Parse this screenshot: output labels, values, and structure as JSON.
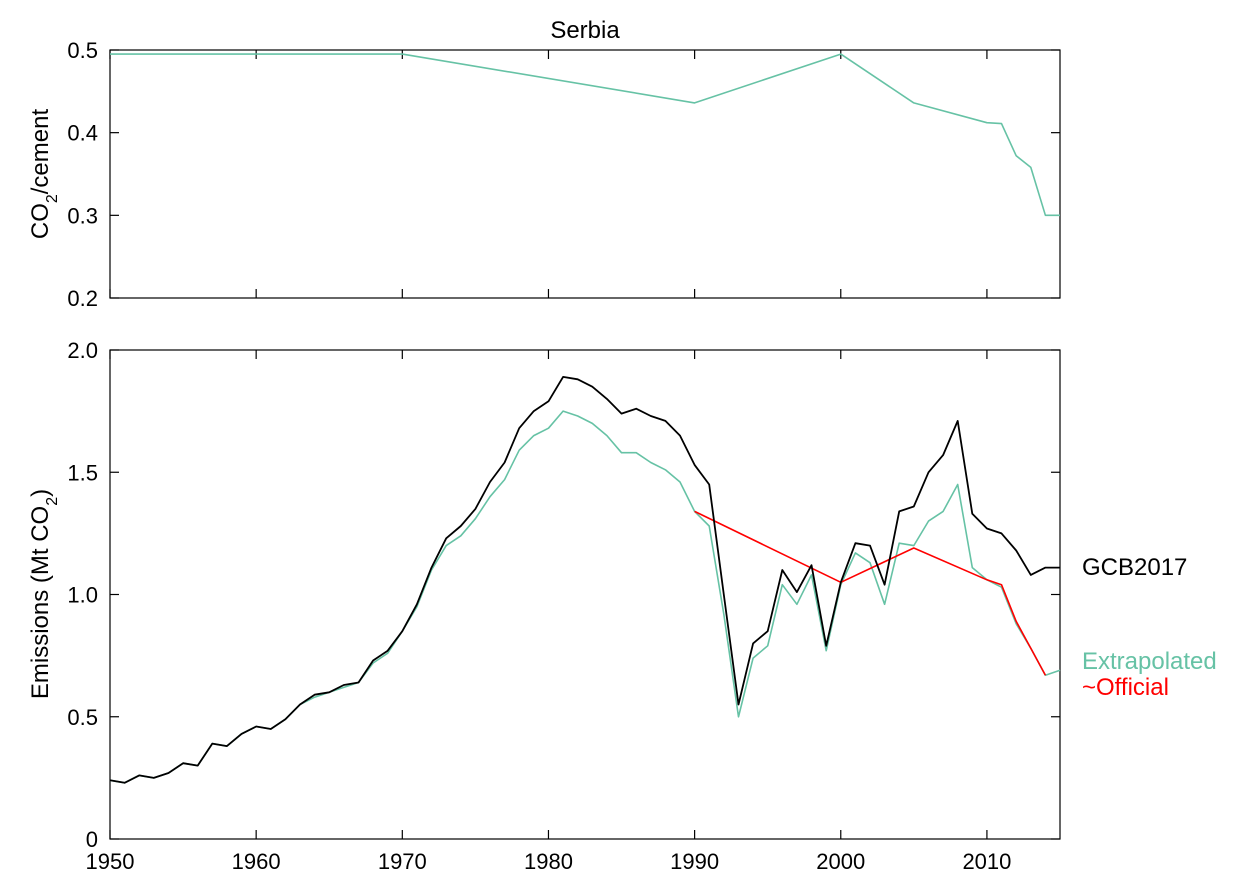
{
  "colors": {
    "gcb": "#000000",
    "extrapolated": "#66c2a5",
    "official": "#ff0000",
    "axis": "#000000"
  },
  "chart_data": [
    {
      "type": "line",
      "title": "Serbia",
      "ylabel": {
        "main": "CO",
        "sub": "2",
        "rest": "/cement"
      },
      "xlabel": "",
      "xlim": [
        1950,
        2015
      ],
      "ylim": [
        0.2,
        0.5
      ],
      "xticks": [
        1950,
        1960,
        1970,
        1980,
        1990,
        2000,
        2010
      ],
      "yticks": [
        0.2,
        0.3,
        0.4,
        0.5
      ],
      "ytick_labels": [
        "0.2",
        "0.3",
        "0.4",
        "0.5"
      ],
      "grid": false,
      "series": [
        {
          "key": "extrapolated",
          "x": [
            1950,
            1970,
            1990,
            2000,
            2005,
            2010,
            2011,
            2012,
            2013,
            2014,
            2015
          ],
          "y": [
            0.495,
            0.495,
            0.436,
            0.495,
            0.436,
            0.412,
            0.411,
            0.372,
            0.358,
            0.3,
            0.3
          ]
        }
      ]
    },
    {
      "type": "line",
      "title": "",
      "ylabel": {
        "main": "Emissions (Mt CO",
        "sub": "2",
        "rest": ")"
      },
      "xlabel": "",
      "xlim": [
        1950,
        2015
      ],
      "ylim": [
        0,
        2.0
      ],
      "xticks": [
        1950,
        1960,
        1970,
        1980,
        1990,
        2000,
        2010
      ],
      "xtick_labels": [
        "1950",
        "1960",
        "1970",
        "1980",
        "1990",
        "2000",
        "2010"
      ],
      "yticks": [
        0,
        0.5,
        1.0,
        1.5,
        2.0
      ],
      "ytick_labels": [
        "0",
        "0.5",
        "1.0",
        "1.5",
        "2.0"
      ],
      "grid": false,
      "legend_position": "right",
      "series": [
        {
          "key": "gcb",
          "name": "GCB2017",
          "x": [
            1950,
            1951,
            1952,
            1953,
            1954,
            1955,
            1956,
            1957,
            1958,
            1959,
            1960,
            1961,
            1962,
            1963,
            1964,
            1965,
            1966,
            1967,
            1968,
            1969,
            1970,
            1971,
            1972,
            1973,
            1974,
            1975,
            1976,
            1977,
            1978,
            1979,
            1980,
            1981,
            1982,
            1983,
            1984,
            1985,
            1986,
            1987,
            1988,
            1989,
            1990,
            1991,
            1992,
            1993,
            1994,
            1995,
            1996,
            1997,
            1998,
            1999,
            2000,
            2001,
            2002,
            2003,
            2004,
            2005,
            2006,
            2007,
            2008,
            2009,
            2010,
            2011,
            2012,
            2013,
            2014,
            2015
          ],
          "y": [
            0.24,
            0.23,
            0.26,
            0.25,
            0.27,
            0.31,
            0.3,
            0.39,
            0.38,
            0.43,
            0.46,
            0.45,
            0.49,
            0.55,
            0.59,
            0.6,
            0.63,
            0.64,
            0.73,
            0.77,
            0.85,
            0.96,
            1.11,
            1.23,
            1.28,
            1.35,
            1.46,
            1.54,
            1.68,
            1.75,
            1.79,
            1.89,
            1.88,
            1.85,
            1.8,
            1.74,
            1.76,
            1.73,
            1.71,
            1.65,
            1.53,
            1.45,
            1.0,
            0.55,
            0.8,
            0.85,
            1.1,
            1.01,
            1.12,
            0.79,
            1.05,
            1.21,
            1.2,
            1.04,
            1.34,
            1.36,
            1.5,
            1.57,
            1.71,
            1.33,
            1.27,
            1.25,
            1.18,
            1.08,
            1.11,
            1.11
          ]
        },
        {
          "key": "extrapolated",
          "name": "Extrapolated",
          "x": [
            1950,
            1951,
            1952,
            1953,
            1954,
            1955,
            1956,
            1957,
            1958,
            1959,
            1960,
            1961,
            1962,
            1963,
            1964,
            1965,
            1966,
            1967,
            1968,
            1969,
            1970,
            1971,
            1972,
            1973,
            1974,
            1975,
            1976,
            1977,
            1978,
            1979,
            1980,
            1981,
            1982,
            1983,
            1984,
            1985,
            1986,
            1987,
            1988,
            1989,
            1990,
            1991,
            1992,
            1993,
            1994,
            1995,
            1996,
            1997,
            1998,
            1999,
            2000,
            2001,
            2002,
            2003,
            2004,
            2005,
            2006,
            2007,
            2008,
            2009,
            2010,
            2011,
            2012,
            2013,
            2014,
            2015
          ],
          "y": [
            0.24,
            0.23,
            0.26,
            0.25,
            0.27,
            0.31,
            0.3,
            0.39,
            0.38,
            0.43,
            0.46,
            0.45,
            0.49,
            0.55,
            0.58,
            0.6,
            0.62,
            0.64,
            0.72,
            0.76,
            0.85,
            0.95,
            1.1,
            1.2,
            1.24,
            1.31,
            1.4,
            1.47,
            1.59,
            1.65,
            1.68,
            1.75,
            1.73,
            1.7,
            1.65,
            1.58,
            1.58,
            1.54,
            1.51,
            1.46,
            1.34,
            1.28,
            0.92,
            0.5,
            0.74,
            0.79,
            1.04,
            0.96,
            1.08,
            0.77,
            1.04,
            1.17,
            1.13,
            0.96,
            1.21,
            1.2,
            1.3,
            1.34,
            1.45,
            1.11,
            1.06,
            1.03,
            0.88,
            0.78,
            0.67,
            0.69
          ]
        },
        {
          "key": "official",
          "name": "~Official",
          "x": [
            1990,
            2000,
            2005,
            2010,
            2011,
            2012,
            2013,
            2014
          ],
          "y": [
            1.34,
            1.05,
            1.19,
            1.06,
            1.04,
            0.89,
            0.78,
            0.67
          ]
        }
      ]
    }
  ]
}
